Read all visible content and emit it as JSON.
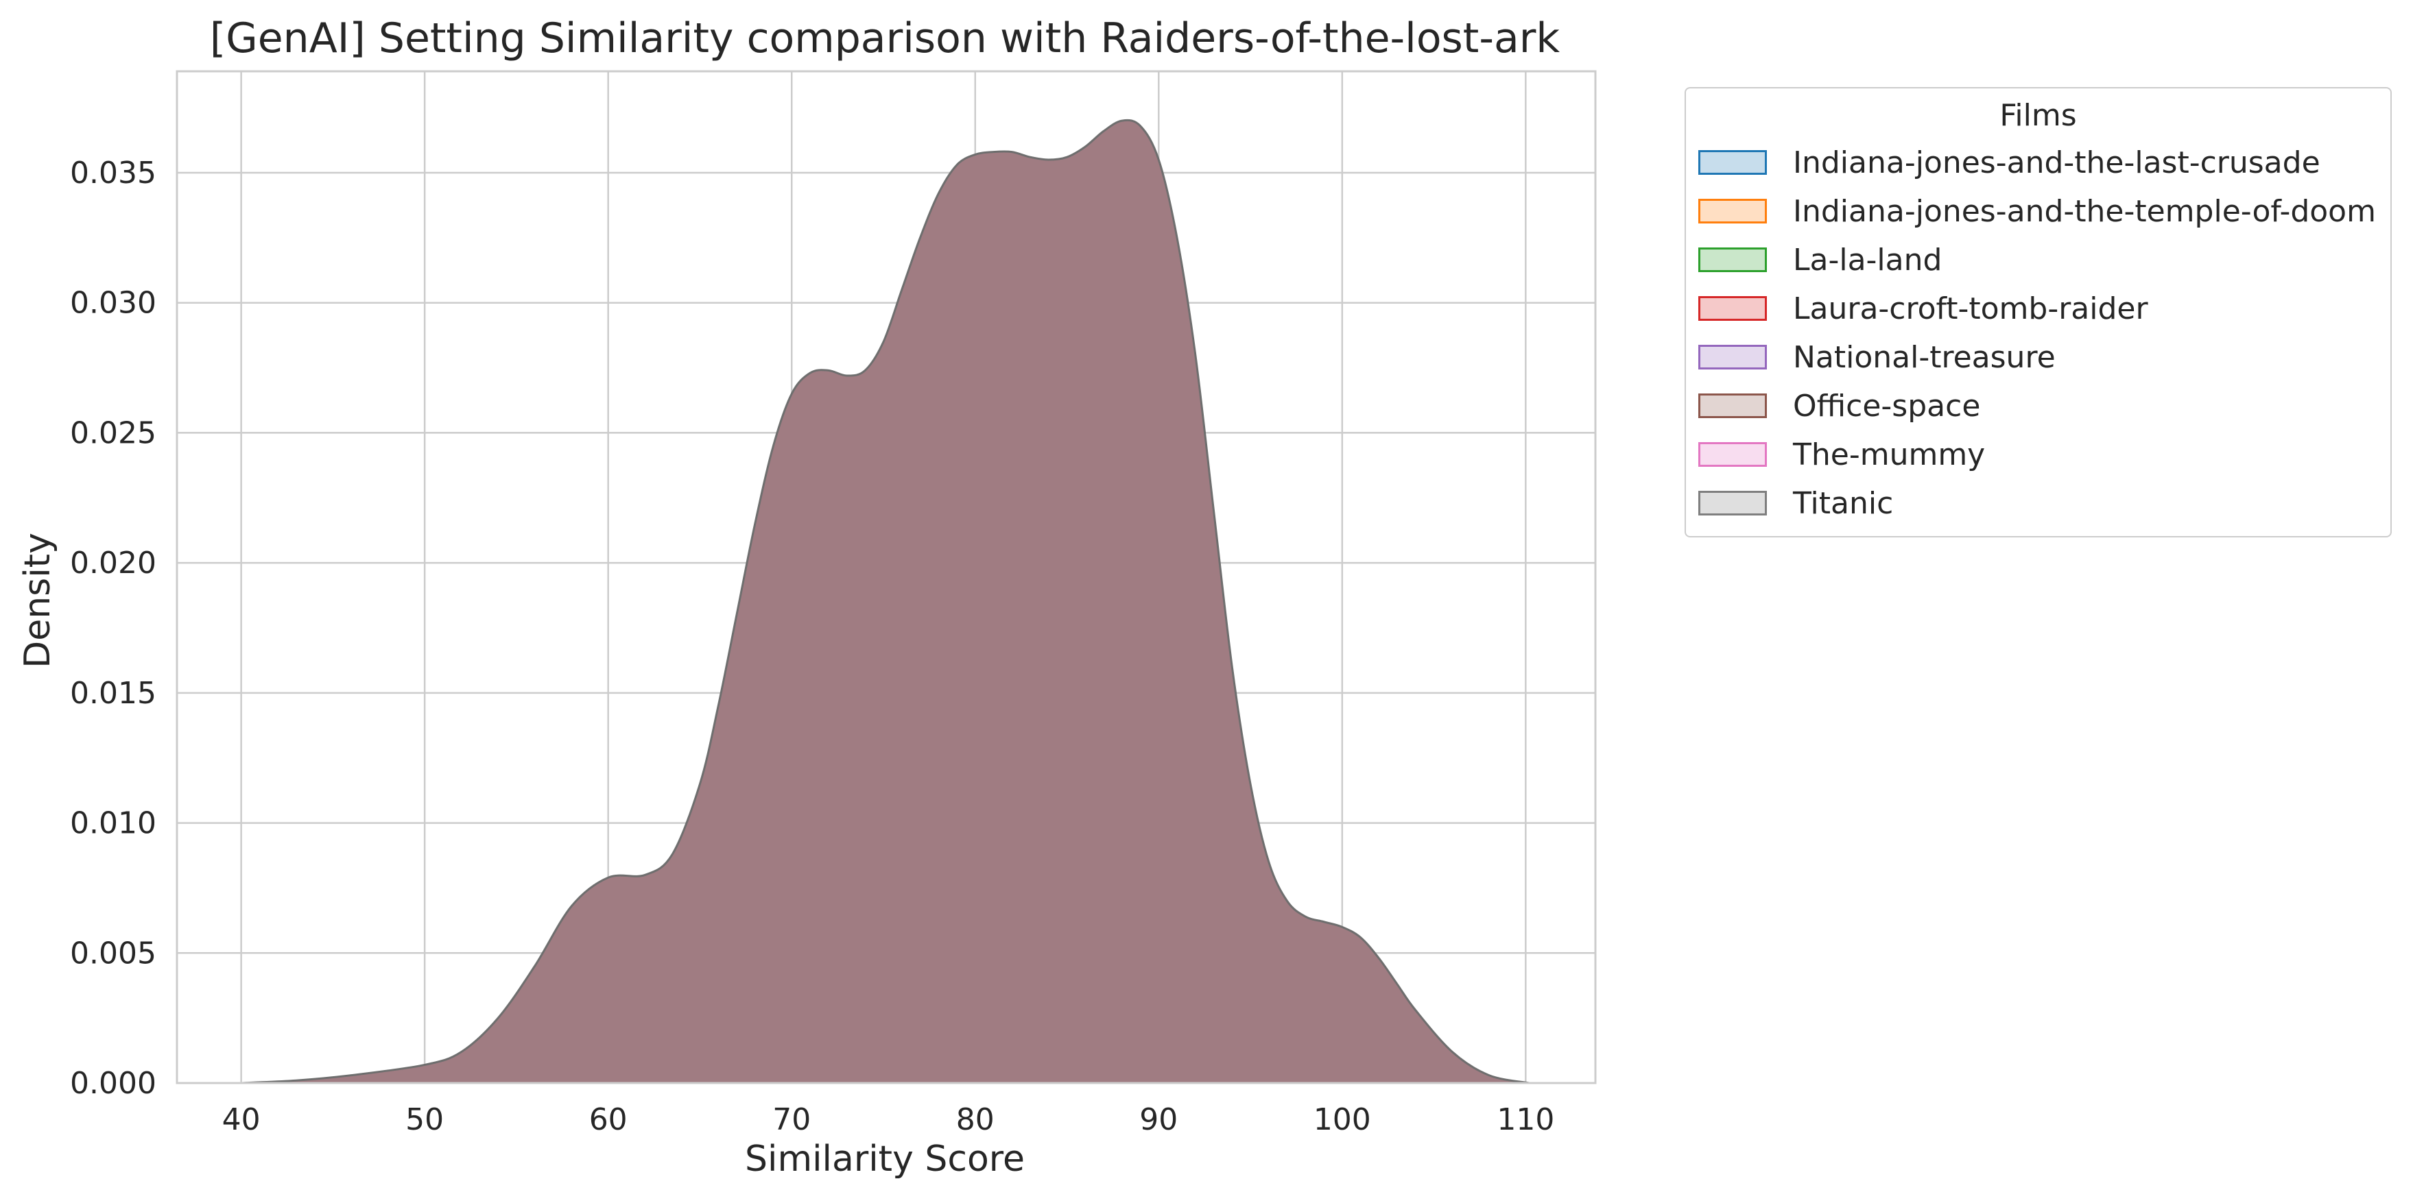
{
  "chart_data": {
    "type": "area",
    "title": "[GenAI] Setting Similarity comparison with Raiders-of-the-lost-ark",
    "xlabel": "Similarity Score",
    "ylabel": "Density",
    "xlim": [
      36.5,
      113.8
    ],
    "ylim": [
      0,
      0.0389
    ],
    "xticks": [
      40,
      50,
      60,
      70,
      80,
      90,
      100,
      110
    ],
    "yticks": [
      0,
      0.005,
      0.01,
      0.015,
      0.02,
      0.025,
      0.03,
      0.035
    ],
    "ytick_labels": [
      "0.000",
      "0.005",
      "0.010",
      "0.015",
      "0.020",
      "0.025",
      "0.030",
      "0.035"
    ],
    "grid": true,
    "legend_placement": "outside-right",
    "legend_title": "Films",
    "series": [
      {
        "name": "Indiana-jones-and-the-last-crusade",
        "color": "#1f77b4"
      },
      {
        "name": "Indiana-jones-and-the-temple-of-doom",
        "color": "#ff7f0e"
      },
      {
        "name": "La-la-land",
        "color": "#2ca02c"
      },
      {
        "name": "Laura-croft-tomb-raider",
        "color": "#d62728"
      },
      {
        "name": "National-treasure",
        "color": "#9467bd"
      },
      {
        "name": "Office-space",
        "color": "#8c564b"
      },
      {
        "name": "The-mummy",
        "color": "#e377c2"
      },
      {
        "name": "Titanic",
        "color": "#7f7f7f"
      }
    ],
    "density_curve": {
      "fill_color": "#a07c82",
      "line_color": "#6e6e6e",
      "x": [
        40,
        43,
        46,
        50,
        52,
        54,
        56,
        58,
        60,
        62,
        63.5,
        65,
        66,
        67,
        68,
        69,
        70,
        71,
        72,
        73,
        74,
        75,
        76,
        77,
        78,
        79,
        80,
        81,
        82,
        83,
        84,
        85,
        86,
        87,
        88,
        89,
        90,
        91,
        92,
        93,
        94,
        95,
        96,
        97,
        98,
        99,
        100,
        101,
        102,
        103,
        104,
        106,
        108,
        110.2
      ],
      "y": [
        0.0,
        0.0001,
        0.0003,
        0.0007,
        0.0012,
        0.0025,
        0.0045,
        0.0068,
        0.0079,
        0.008,
        0.0088,
        0.0115,
        0.0145,
        0.018,
        0.0215,
        0.0245,
        0.0265,
        0.0273,
        0.0274,
        0.0272,
        0.0274,
        0.0285,
        0.0305,
        0.0325,
        0.0342,
        0.0353,
        0.0357,
        0.0358,
        0.0358,
        0.0356,
        0.0355,
        0.0356,
        0.036,
        0.0366,
        0.037,
        0.0368,
        0.0355,
        0.0325,
        0.028,
        0.022,
        0.016,
        0.0115,
        0.0085,
        0.007,
        0.0064,
        0.0062,
        0.006,
        0.0056,
        0.0048,
        0.0038,
        0.0028,
        0.0012,
        0.0003,
        0.0
      ]
    }
  }
}
